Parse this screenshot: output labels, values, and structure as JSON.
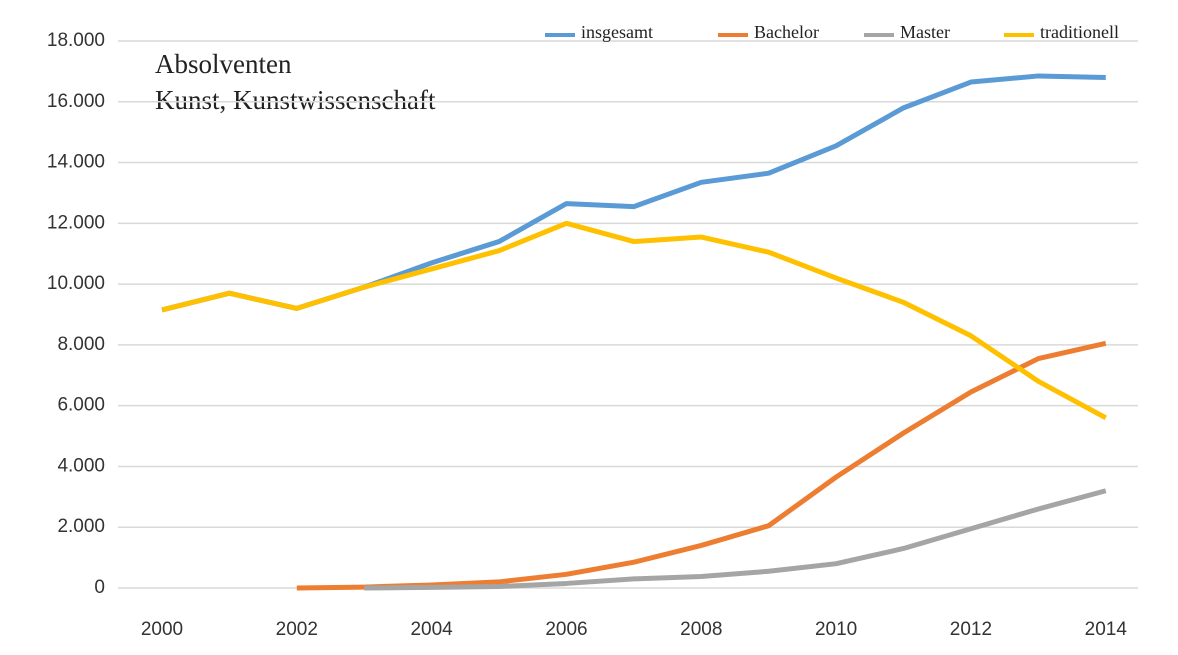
{
  "chart_data": {
    "type": "line",
    "title": [
      "Absolventen",
      "Kunst, Kunstwissenschaft"
    ],
    "x": [
      2000,
      2001,
      2002,
      2003,
      2004,
      2005,
      2006,
      2007,
      2008,
      2009,
      2010,
      2011,
      2012,
      2013,
      2014
    ],
    "series": [
      {
        "name": "insgesamt",
        "color": "#5b9bd5",
        "values": [
          9150,
          9700,
          9200,
          9900,
          10700,
          11400,
          12650,
          12550,
          13350,
          13650,
          14550,
          15800,
          16650,
          16850,
          16800
        ]
      },
      {
        "name": "Bachelor",
        "color": "#ed7d31",
        "values": [
          null,
          null,
          0,
          30,
          100,
          200,
          450,
          850,
          1400,
          2050,
          3650,
          5100,
          6450,
          7550,
          8050
        ]
      },
      {
        "name": "Master",
        "color": "#a5a5a5",
        "values": [
          null,
          null,
          null,
          0,
          20,
          50,
          150,
          300,
          380,
          550,
          800,
          1300,
          1950,
          2600,
          3200
        ]
      },
      {
        "name": "traditionell",
        "color": "#ffc000",
        "values": [
          9150,
          9700,
          9200,
          9900,
          10500,
          11100,
          12000,
          11400,
          11550,
          11050,
          10200,
          9400,
          8300,
          6800,
          5600
        ]
      }
    ],
    "xlim": [
      1999.6,
      2014.3
    ],
    "xticks": [
      2000,
      2002,
      2004,
      2006,
      2008,
      2010,
      2012,
      2014
    ],
    "ylim": [
      0,
      18000
    ],
    "yticks": [
      0,
      {
        "value": 2000,
        "label": "2.000"
      },
      {
        "value": 4000,
        "label": "4.000"
      },
      {
        "value": 6000,
        "label": "6.000"
      },
      {
        "value": 8000,
        "label": "8.000"
      },
      {
        "value": 10000,
        "label": "10.000"
      },
      {
        "value": 12000,
        "label": "12.000"
      },
      {
        "value": 14000,
        "label": "14.000"
      },
      {
        "value": 16000,
        "label": "16.000"
      },
      {
        "value": 18000,
        "label": "18.000"
      }
    ],
    "grid": true,
    "legend": "top"
  }
}
